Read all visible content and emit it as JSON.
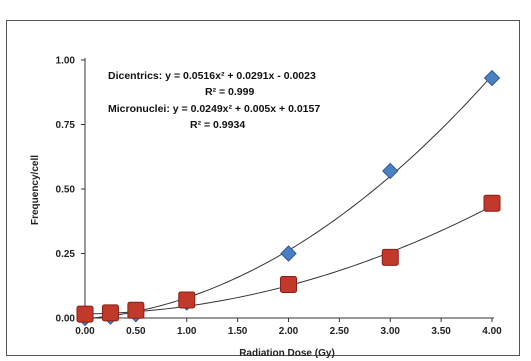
{
  "chart_data": {
    "type": "scatter",
    "title": "",
    "xlabel": "Radiation Dose (Gy)",
    "ylabel": "Frequency/cell",
    "xlim": [
      0,
      4
    ],
    "ylim": [
      0,
      1
    ],
    "x_ticks": [
      "0.00",
      "0.50",
      "1.00",
      "1.50",
      "2.00",
      "2.50",
      "3.00",
      "3.50",
      "4.00"
    ],
    "y_ticks": [
      "0.00",
      "0.25",
      "0.50",
      "0.75",
      "1.00"
    ],
    "grid": false,
    "series": [
      {
        "key": "dicentrics",
        "marker": "diamond",
        "color": "#4a7fc1",
        "x": [
          0,
          0.25,
          0.5,
          1,
          2,
          3,
          4
        ],
        "y": [
          0.0,
          0.005,
          0.015,
          0.06,
          0.25,
          0.57,
          0.93
        ],
        "fit": {
          "a": 0.0516,
          "b": 0.0291,
          "c": -0.0023
        }
      },
      {
        "key": "micronuclei",
        "marker": "square",
        "color": "#c0392b",
        "x": [
          0,
          0.25,
          0.5,
          1,
          2,
          3,
          4
        ],
        "y": [
          0.015,
          0.02,
          0.03,
          0.07,
          0.13,
          0.235,
          0.445
        ],
        "fit": {
          "a": 0.0249,
          "b": 0.005,
          "c": 0.0157
        }
      }
    ],
    "annotations": {
      "dicentrics_eq": "Dicentrics: y = 0.0516x² + 0.0291x - 0.0023",
      "dicentrics_r2": "R² = 0.999",
      "micronuclei_eq": "Micronuclei: y = 0.0249x² + 0.005x + 0.0157",
      "micronuclei_r2": "R² = 0.9934"
    }
  }
}
